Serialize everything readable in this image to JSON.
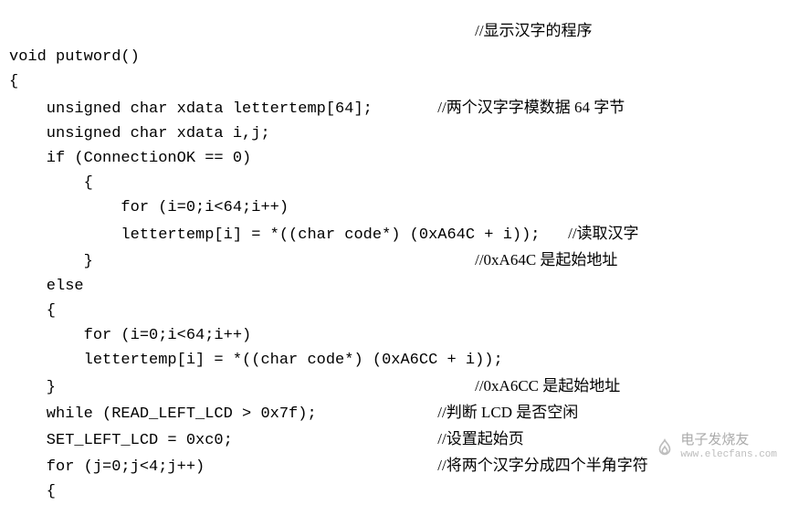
{
  "code": {
    "lines": [
      {
        "indent": 0,
        "code": "",
        "commentCol": 50,
        "comment": "//显示汉字的程序"
      },
      {
        "indent": 0,
        "code": "void putword()",
        "comment": ""
      },
      {
        "indent": 0,
        "code": "{",
        "comment": ""
      },
      {
        "indent": 4,
        "code": "unsigned char xdata lettertemp[64];",
        "commentCol": 46,
        "comment": "//两个汉字字模数据 64 字节"
      },
      {
        "indent": 4,
        "code": "unsigned char xdata i,j;",
        "comment": ""
      },
      {
        "indent": 4,
        "code": "if (ConnectionOK == 0)",
        "comment": ""
      },
      {
        "indent": 8,
        "code": "{",
        "comment": ""
      },
      {
        "indent": 12,
        "code": "for (i=0;i<64;i++)",
        "comment": ""
      },
      {
        "indent": 12,
        "code": "lettertemp[i] = *((char code*) (0xA64C + i));",
        "commentCol": 60,
        "comment": "//读取汉字"
      },
      {
        "indent": 8,
        "code": "}",
        "commentCol": 50,
        "comment": "//0xA64C 是起始地址"
      },
      {
        "indent": 4,
        "code": "else",
        "comment": ""
      },
      {
        "indent": 4,
        "code": "{",
        "comment": ""
      },
      {
        "indent": 8,
        "code": "for (i=0;i<64;i++)",
        "comment": ""
      },
      {
        "indent": 8,
        "code": "lettertemp[i] = *((char code*) (0xA6CC + i));",
        "comment": ""
      },
      {
        "indent": 4,
        "code": "}",
        "commentCol": 50,
        "comment": "//0xA6CC 是起始地址"
      },
      {
        "indent": 4,
        "code": "while (READ_LEFT_LCD > 0x7f);",
        "commentCol": 46,
        "comment": "//判断 LCD 是否空闲"
      },
      {
        "indent": 4,
        "code": "SET_LEFT_LCD = 0xc0;",
        "commentCol": 46,
        "comment": "//设置起始页"
      },
      {
        "indent": 4,
        "code": "for (j=0;j<4;j++)",
        "commentCol": 46,
        "comment": "//将两个汉字分成四个半角字符"
      },
      {
        "indent": 4,
        "code": "{",
        "comment": ""
      }
    ]
  },
  "watermark": {
    "brand": "电子发烧友",
    "url": "www.elecfans.com",
    "iconColor": "#888888"
  },
  "style": {
    "fontSize": 17,
    "codeFont": "Courier New",
    "commentFont": "SimSun",
    "textColor": "#000000",
    "background": "#ffffff"
  }
}
